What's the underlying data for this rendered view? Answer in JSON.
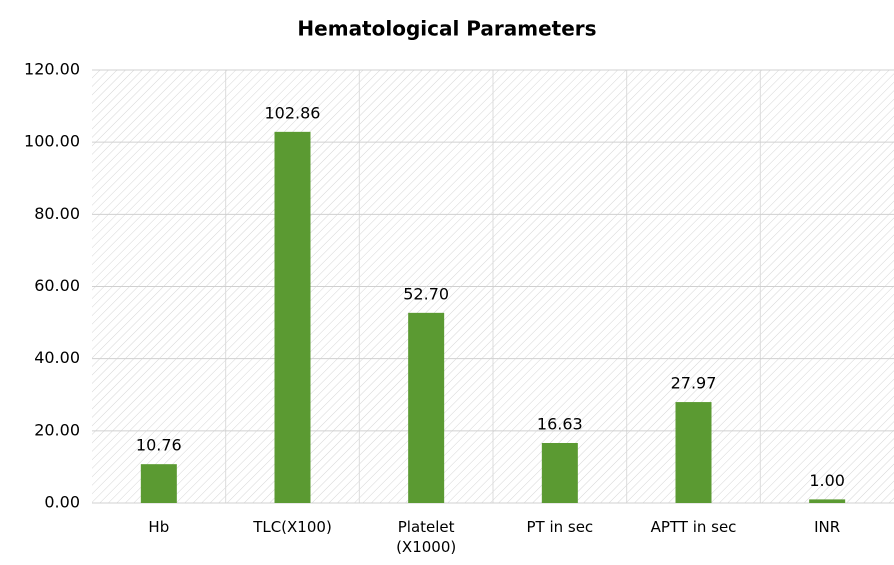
{
  "chart_data": {
    "type": "bar",
    "title": "Hematological Parameters",
    "categories": [
      "Hb",
      "TLC(X100)",
      "Platelet (X1000)",
      "PT in sec",
      "APTT in sec",
      "INR"
    ],
    "values": [
      10.76,
      102.86,
      52.7,
      16.63,
      27.97,
      1
    ],
    "value_labels": [
      "10.76",
      "102.86",
      "52.70",
      "16.63",
      "27.97",
      "1.00"
    ],
    "color": "#5b9a32",
    "ylim": [
      0,
      120
    ],
    "yticks": [
      {
        "value": 0,
        "label": "0.00"
      },
      {
        "value": 20,
        "label": "20.00"
      },
      {
        "value": 40,
        "label": "40.00"
      },
      {
        "value": 60,
        "label": "60.00"
      },
      {
        "value": 80,
        "label": "80.00"
      },
      {
        "value": 100,
        "label": "100.00"
      },
      {
        "value": 120,
        "label": "120.00"
      }
    ],
    "grid": true
  }
}
